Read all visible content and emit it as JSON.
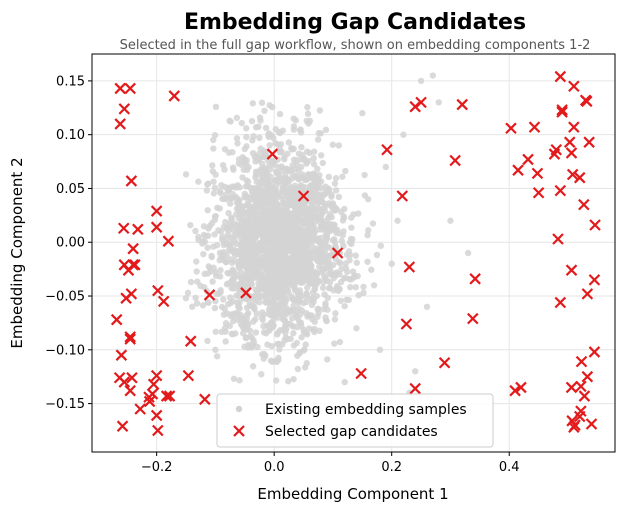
{
  "chart_data": {
    "type": "scatter",
    "title": "Embedding Gap Candidates",
    "subtitle": "Selected in the full gap workflow, shown on embedding components 1-2",
    "xlabel": "Embedding Component 1",
    "ylabel": "Embedding Component 2",
    "xlim": [
      -0.31,
      0.58
    ],
    "ylim": [
      -0.195,
      0.175
    ],
    "xticks": [
      -0.2,
      0.0,
      0.2,
      0.4
    ],
    "xtick_labels": [
      "−0.2",
      "0.0",
      "0.2",
      "0.4"
    ],
    "yticks": [
      -0.15,
      -0.1,
      -0.05,
      0.0,
      0.05,
      0.1,
      0.15
    ],
    "ytick_labels": [
      "−0.15",
      "−0.10",
      "−0.05",
      "0.00",
      "0.05",
      "0.10",
      "0.15"
    ],
    "grid": true,
    "legend_position": "lower-center",
    "series": [
      {
        "name": "Existing embedding samples",
        "marker": "dot",
        "color": "#d3d3d3",
        "distribution": {
          "center": [
            0.0,
            0.0
          ],
          "spread": [
            0.05,
            0.045
          ],
          "count": 2200,
          "tail_points": [
            [
              0.16,
              0.04
            ],
            [
              0.2,
              -0.02
            ],
            [
              0.18,
              -0.1
            ],
            [
              0.25,
              0.15
            ],
            [
              0.12,
              -0.13
            ],
            [
              0.3,
              0.02
            ],
            [
              0.22,
              0.1
            ],
            [
              0.15,
              0.12
            ],
            [
              -0.1,
              -0.1
            ],
            [
              0.26,
              -0.06
            ],
            [
              0.14,
              -0.08
            ],
            [
              0.19,
              0.07
            ],
            [
              0.23,
              -0.14
            ],
            [
              0.28,
              0.13
            ],
            [
              0.17,
              -0.04
            ],
            [
              0.11,
              0.09
            ],
            [
              0.33,
              -0.01
            ],
            [
              0.21,
              0.02
            ],
            [
              0.27,
              0.155
            ],
            [
              0.24,
              -0.12
            ]
          ]
        }
      },
      {
        "name": "Selected gap candidates",
        "marker": "x",
        "color": "#e31a1c",
        "points": [
          [
            -0.262,
            0.143
          ],
          [
            -0.245,
            0.143
          ],
          [
            -0.255,
            0.124
          ],
          [
            -0.262,
            0.11
          ],
          [
            -0.17,
            0.136
          ],
          [
            -0.243,
            0.057
          ],
          [
            -0.256,
            0.013
          ],
          [
            -0.232,
            0.012
          ],
          [
            -0.2,
            0.029
          ],
          [
            -0.2,
            0.014
          ],
          [
            -0.18,
            0.001
          ],
          [
            -0.24,
            -0.006
          ],
          [
            -0.255,
            -0.021
          ],
          [
            -0.24,
            -0.021
          ],
          [
            -0.248,
            -0.026
          ],
          [
            -0.237,
            -0.021
          ],
          [
            -0.252,
            -0.052
          ],
          [
            -0.243,
            -0.048
          ],
          [
            -0.198,
            -0.045
          ],
          [
            -0.188,
            -0.055
          ],
          [
            -0.268,
            -0.072
          ],
          [
            -0.245,
            -0.088
          ],
          [
            -0.245,
            -0.09
          ],
          [
            -0.26,
            -0.105
          ],
          [
            -0.263,
            -0.126
          ],
          [
            -0.255,
            -0.13
          ],
          [
            -0.242,
            -0.126
          ],
          [
            -0.245,
            -0.138
          ],
          [
            -0.2,
            -0.124
          ],
          [
            -0.205,
            -0.132
          ],
          [
            -0.142,
            -0.092
          ],
          [
            -0.146,
            -0.124
          ],
          [
            -0.183,
            -0.143
          ],
          [
            -0.178,
            -0.143
          ],
          [
            -0.212,
            -0.148
          ],
          [
            -0.207,
            -0.141
          ],
          [
            -0.213,
            -0.144
          ],
          [
            -0.228,
            -0.155
          ],
          [
            -0.2,
            -0.161
          ],
          [
            -0.198,
            -0.175
          ],
          [
            -0.258,
            -0.171
          ],
          [
            -0.118,
            -0.146
          ],
          [
            -0.11,
            -0.049
          ],
          [
            -0.048,
            -0.047
          ],
          [
            -0.003,
            0.082
          ],
          [
            0.05,
            0.043
          ],
          [
            0.108,
            -0.01
          ],
          [
            0.148,
            -0.122
          ],
          [
            0.192,
            0.086
          ],
          [
            0.218,
            0.043
          ],
          [
            0.23,
            -0.023
          ],
          [
            0.225,
            -0.076
          ],
          [
            0.24,
            0.126
          ],
          [
            0.25,
            0.13
          ],
          [
            0.24,
            -0.136
          ],
          [
            0.29,
            -0.112
          ],
          [
            0.308,
            0.076
          ],
          [
            0.32,
            0.128
          ],
          [
            0.338,
            -0.071
          ],
          [
            0.342,
            -0.034
          ],
          [
            0.403,
            0.106
          ],
          [
            0.41,
            -0.138
          ],
          [
            0.42,
            -0.135
          ],
          [
            0.415,
            0.067
          ],
          [
            0.432,
            0.077
          ],
          [
            0.443,
            0.107
          ],
          [
            0.448,
            0.064
          ],
          [
            0.45,
            0.046
          ],
          [
            0.477,
            0.082
          ],
          [
            0.48,
            0.086
          ],
          [
            0.483,
            0.003
          ],
          [
            0.487,
            -0.056
          ],
          [
            0.487,
            0.048
          ],
          [
            0.49,
            0.121
          ],
          [
            0.49,
            0.123
          ],
          [
            0.487,
            0.154
          ],
          [
            0.503,
            0.093
          ],
          [
            0.506,
            0.083
          ],
          [
            0.51,
            0.107
          ],
          [
            0.51,
            0.145
          ],
          [
            0.53,
            0.132
          ],
          [
            0.532,
            0.131
          ],
          [
            0.536,
            0.093
          ],
          [
            0.508,
            0.063
          ],
          [
            0.52,
            0.06
          ],
          [
            0.527,
            0.035
          ],
          [
            0.546,
            0.016
          ],
          [
            0.506,
            -0.026
          ],
          [
            0.533,
            -0.048
          ],
          [
            0.545,
            -0.035
          ],
          [
            0.523,
            -0.111
          ],
          [
            0.545,
            -0.102
          ],
          [
            0.533,
            -0.125
          ],
          [
            0.506,
            -0.135
          ],
          [
            0.522,
            -0.134
          ],
          [
            0.528,
            -0.143
          ],
          [
            0.522,
            -0.157
          ],
          [
            0.52,
            -0.162
          ],
          [
            0.512,
            -0.17
          ],
          [
            0.507,
            -0.166
          ],
          [
            0.51,
            -0.172
          ],
          [
            0.54,
            -0.169
          ]
        ]
      }
    ]
  }
}
